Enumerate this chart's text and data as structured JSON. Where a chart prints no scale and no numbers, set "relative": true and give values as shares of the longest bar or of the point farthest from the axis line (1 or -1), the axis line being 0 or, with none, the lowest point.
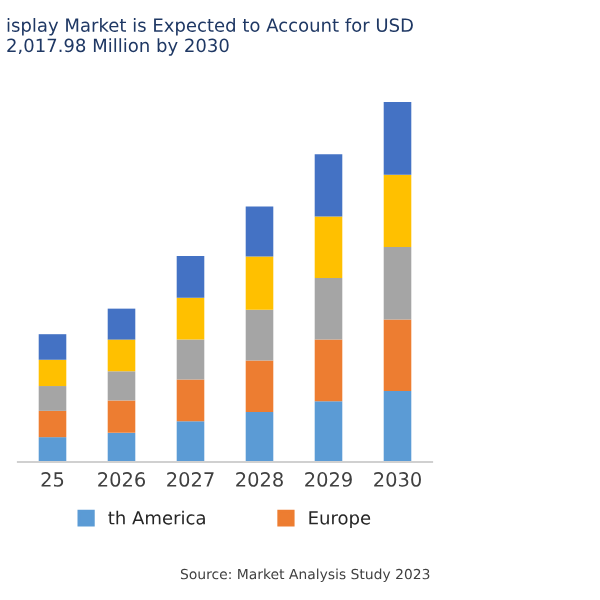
{
  "chart_data": {
    "type": "bar",
    "stacked": true,
    "relative": true,
    "title": "isplay Market is Expected to Account for USD\n2,017.98 Million by 2030",
    "categories": [
      "25",
      "2026",
      "2027",
      "2028",
      "2029",
      "2030"
    ],
    "series": [
      {
        "name": "th America",
        "color": "#5b9bd5",
        "values": [
          0.069,
          0.081,
          0.113,
          0.139,
          0.169,
          0.197
        ]
      },
      {
        "name": "Europe",
        "color": "#ed7d31",
        "values": [
          0.073,
          0.09,
          0.116,
          0.143,
          0.171,
          0.199
        ]
      },
      {
        "color": "#a5a5a5",
        "values": [
          0.069,
          0.081,
          0.111,
          0.141,
          0.171,
          0.201
        ]
      },
      {
        "color": "#ffc000",
        "values": [
          0.073,
          0.088,
          0.116,
          0.148,
          0.171,
          0.201
        ]
      },
      {
        "color": "#4472c4",
        "values": [
          0.071,
          0.086,
          0.116,
          0.139,
          0.173,
          0.202
        ]
      }
    ],
    "legend": "bottom",
    "grid": false,
    "annotations": [
      "Source: Market Analysis Study 2023"
    ]
  }
}
